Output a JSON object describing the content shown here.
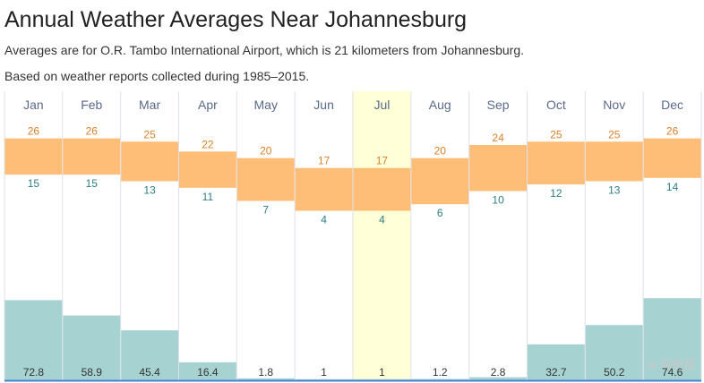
{
  "title": "Annual Weather Averages Near Johannesburg",
  "subtitle_1": "Averages are for O.R. Tambo International Airport, which is 21 kilometers from Johannesburg.",
  "subtitle_2": "Based on weather reports collected during 1985–2015.",
  "watermark": "⊗ 网联盟",
  "colors": {
    "temp_band": "#ffbe78",
    "precip_bar": "#a7d2d2",
    "highlight_column": "#ffffd8",
    "grid": "#dde2ea",
    "baseline": "#3f84d4",
    "high_text": "#d9822b",
    "low_text": "#2f7d83",
    "month_text": "#5a6a8a"
  },
  "chart_data": {
    "type": "bar",
    "categories": [
      "Jan",
      "Feb",
      "Mar",
      "Apr",
      "May",
      "Jun",
      "Jul",
      "Aug",
      "Sep",
      "Oct",
      "Nov",
      "Dec"
    ],
    "highlighted_category": "Jul",
    "series": [
      {
        "values": [
          26,
          26,
          25,
          22,
          20,
          17,
          17,
          20,
          24,
          25,
          25,
          26
        ]
      },
      {
        "values": [
          15,
          15,
          13,
          11,
          7,
          4,
          4,
          6,
          10,
          12,
          13,
          14
        ]
      },
      {
        "values": [
          72.8,
          58.9,
          45.4,
          16.4,
          1.8,
          1,
          1,
          1.2,
          2.8,
          32.7,
          50.2,
          74.6
        ]
      }
    ],
    "temperature_range": [
      0,
      30
    ],
    "precip_range": [
      0,
      100
    ],
    "grid": true,
    "legend": "none"
  }
}
